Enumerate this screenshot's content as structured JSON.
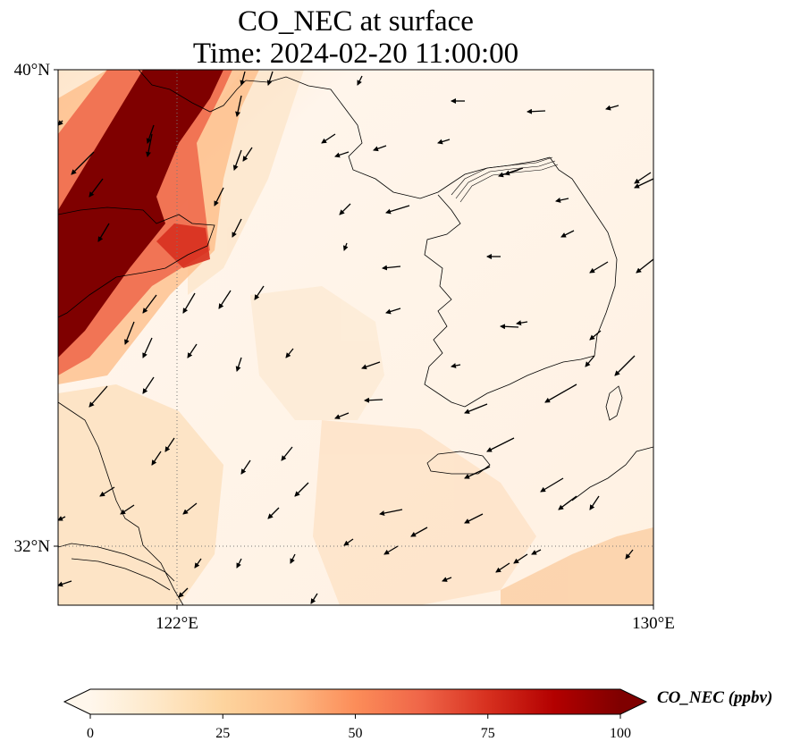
{
  "title": {
    "line1": "CO_NEC at surface",
    "line2": "Time: 2024-02-20 11:00:00"
  },
  "map": {
    "extent": {
      "lon_min": 120,
      "lon_max": 130,
      "lat_min": 31,
      "lat_max": 40
    },
    "gridlines": {
      "lon": [
        122
      ],
      "lat": [
        32
      ],
      "style": "dotted"
    },
    "lat_ticks": [
      {
        "value": 40,
        "label": "40°N"
      },
      {
        "value": 32,
        "label": "32°N"
      }
    ],
    "lon_ticks": [
      {
        "value": 122,
        "label": "122°E"
      },
      {
        "value": 130,
        "label": "130°E"
      }
    ],
    "variable": "CO_NEC",
    "plume_color": "#7f0000",
    "background_color": "#fff5eb"
  },
  "colorbar": {
    "label": "CO_NEC (ppbv)",
    "min": 0,
    "max": 100,
    "extend": "both",
    "ticks": [
      {
        "value": 0,
        "label": "0"
      },
      {
        "value": 25,
        "label": "25"
      },
      {
        "value": 50,
        "label": "50"
      },
      {
        "value": 75,
        "label": "75"
      },
      {
        "value": 100,
        "label": "100"
      }
    ],
    "colormap": "OrRd",
    "colors": [
      "#fff7ec",
      "#fee8c8",
      "#fdd49e",
      "#fdbb84",
      "#fc8d59",
      "#ef6548",
      "#d7301f",
      "#b30000",
      "#7f0000"
    ]
  }
}
